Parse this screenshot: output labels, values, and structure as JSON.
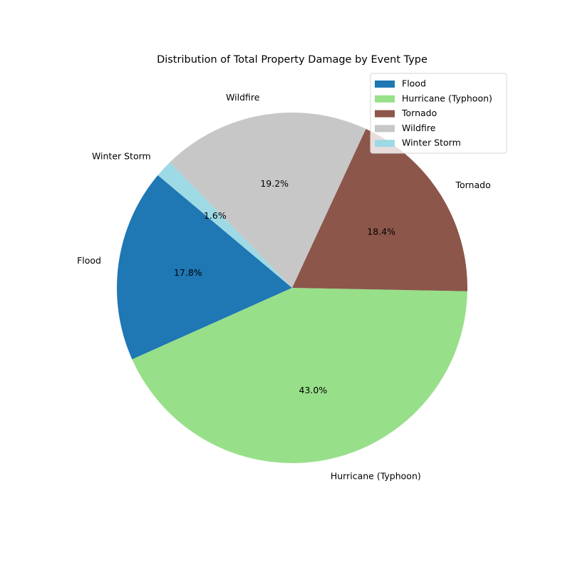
{
  "chart_data": {
    "type": "pie",
    "title": "Distribution of Total Property Damage by Event Type",
    "categories": [
      "Flood",
      "Hurricane (Typhoon)",
      "Tornado",
      "Wildfire",
      "Winter Storm"
    ],
    "values": [
      17.8,
      43.0,
      18.4,
      19.2,
      1.6
    ],
    "percent_labels": [
      "17.8%",
      "43.0%",
      "18.4%",
      "19.2%",
      "1.6%"
    ],
    "colors": [
      "#1f77b4",
      "#98df8a",
      "#8c564b",
      "#c7c7c7",
      "#9edae5"
    ],
    "start_angle_deg": 140,
    "direction": "counterclockwise",
    "legend": {
      "position": "top-right",
      "entries": [
        "Flood",
        "Hurricane (Typhoon)",
        "Tornado",
        "Wildfire",
        "Winter Storm"
      ]
    }
  }
}
